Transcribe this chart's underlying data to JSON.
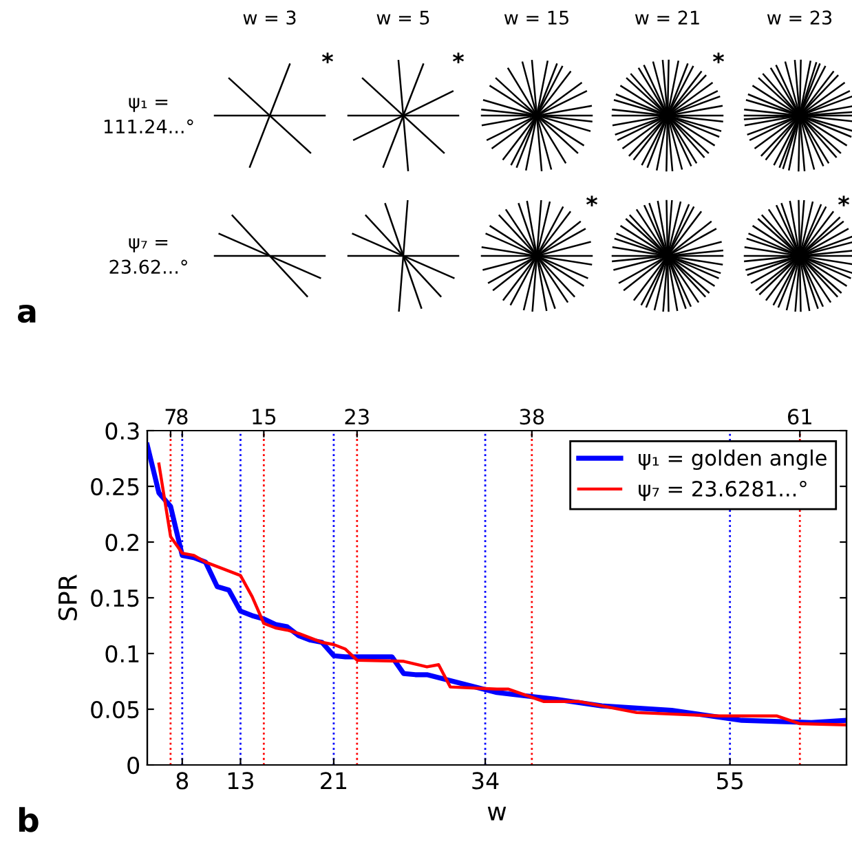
{
  "chart_data": [
    {
      "type": "other",
      "annotations": [
        "w = 3",
        "w = 5",
        "w = 15",
        "w = 21",
        "w = 23",
        "ψ₁ =\n111.24...°",
        "ψ₇ =\n23.62...°",
        "*",
        "*",
        "*",
        "*",
        "*",
        "a"
      ]
    },
    {
      "type": "line",
      "xlabel": "w",
      "ylabel": "SPR",
      "legend": "top right",
      "grid": false,
      "line_style": "solid",
      "marker": "none",
      "xlim": [
        5,
        65
      ],
      "xticks": [
        8,
        13,
        21,
        34,
        55
      ],
      "x2lim": [
        5,
        65
      ],
      "x2ticks": [
        7,
        8,
        15,
        23,
        38,
        61
      ],
      "ylim": [
        0,
        0.3
      ],
      "yticks": [
        0,
        0.05,
        0.1,
        0.15,
        0.2,
        0.25,
        0.3
      ],
      "series": [
        {
          "name": "ψ₁ = golden angle",
          "color": "#0000ff",
          "x": [
            5,
            6,
            7,
            8,
            9,
            10,
            11,
            12,
            13,
            14,
            15,
            16,
            17,
            18,
            19,
            20,
            21,
            22,
            23,
            26,
            27,
            28,
            29,
            35,
            40,
            44,
            50,
            56,
            62,
            65
          ],
          "values": [
            0.287,
            0.244,
            0.232,
            0.188,
            0.186,
            0.182,
            0.16,
            0.157,
            0.138,
            0.134,
            0.131,
            0.126,
            0.124,
            0.116,
            0.112,
            0.11,
            0.098,
            0.097,
            0.097,
            0.097,
            0.082,
            0.081,
            0.081,
            0.065,
            0.059,
            0.053,
            0.049,
            0.04,
            0.038,
            0.04
          ]
        },
        {
          "name": "ψ₇ = 23.6281...°",
          "color": "#ff0000",
          "x": [
            6,
            7,
            8,
            9,
            10,
            11,
            12,
            13,
            14,
            15,
            16,
            17,
            18,
            19,
            20,
            21,
            22,
            23,
            27,
            29,
            30,
            31,
            35,
            36,
            39,
            42,
            47,
            54,
            59,
            61,
            65
          ],
          "values": [
            0.27,
            0.205,
            0.19,
            0.188,
            0.182,
            0.178,
            0.174,
            0.17,
            0.151,
            0.127,
            0.123,
            0.121,
            0.118,
            0.114,
            0.11,
            0.108,
            0.104,
            0.094,
            0.093,
            0.088,
            0.09,
            0.07,
            0.068,
            0.068,
            0.057,
            0.057,
            0.047,
            0.044,
            0.044,
            0.037,
            0.036
          ]
        }
      ],
      "ref_lines": [
        {
          "axis": "x",
          "value": 8,
          "color": "#0000ff",
          "line_style": "dotted"
        },
        {
          "axis": "x",
          "value": 13,
          "color": "#0000ff",
          "line_style": "dotted"
        },
        {
          "axis": "x",
          "value": 21,
          "color": "#0000ff",
          "line_style": "dotted"
        },
        {
          "axis": "x",
          "value": 34,
          "color": "#0000ff",
          "line_style": "dotted"
        },
        {
          "axis": "x",
          "value": 55,
          "color": "#0000ff",
          "line_style": "dotted"
        },
        {
          "axis": "x",
          "value": 7,
          "color": "#ff0000",
          "line_style": "dotted"
        },
        {
          "axis": "x",
          "value": 15,
          "color": "#ff0000",
          "line_style": "dotted"
        },
        {
          "axis": "x",
          "value": 23,
          "color": "#ff0000",
          "line_style": "dotted"
        },
        {
          "axis": "x",
          "value": 38,
          "color": "#ff0000",
          "line_style": "dotted"
        },
        {
          "axis": "x",
          "value": 61,
          "color": "#ff0000",
          "line_style": "dotted"
        }
      ],
      "annotations": [
        "b"
      ]
    }
  ]
}
